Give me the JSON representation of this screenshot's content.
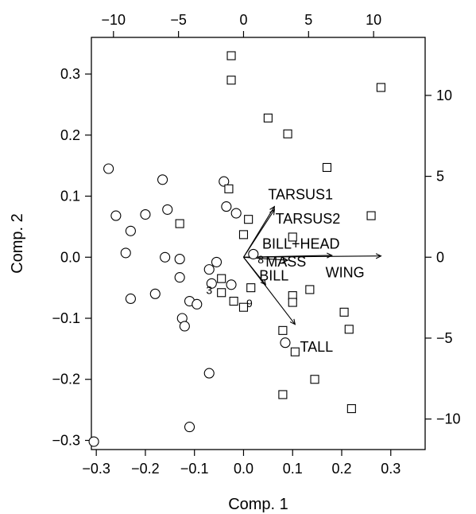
{
  "chart_data": {
    "type": "scatter",
    "xlabel": "Comp. 1",
    "ylabel": "Comp. 2",
    "xlim": [
      -0.31,
      0.37
    ],
    "ylim": [
      -0.315,
      0.36
    ],
    "xticks": [
      -0.3,
      -0.2,
      -0.1,
      0.0,
      0.1,
      0.2,
      0.3
    ],
    "xtick_labels": [
      "−0.3",
      "−0.2",
      "−0.1",
      "0.0",
      "0.1",
      "0.2",
      "0.3"
    ],
    "yticks": [
      -0.3,
      -0.2,
      -0.1,
      0.0,
      0.1,
      0.2,
      0.3
    ],
    "ytick_labels": [
      "−0.3",
      "−0.2",
      "−0.1",
      "0.0",
      "0.1",
      "0.2",
      "0.3"
    ],
    "top_axis": {
      "ticks": [
        -10,
        -5,
        0,
        5,
        10
      ],
      "tick_labels": [
        "−10",
        "−5",
        "0",
        "5",
        "10"
      ],
      "scale": 0.0265
    },
    "right_axis": {
      "ticks": [
        10,
        5,
        0,
        -5,
        -10
      ],
      "tick_labels": [
        "10",
        "5",
        "0",
        "−5",
        "−10"
      ],
      "scale": 0.0265
    },
    "grid": false,
    "series": [
      {
        "marker": "circle",
        "points": [
          [
            -0.275,
            0.145
          ],
          [
            -0.26,
            0.068
          ],
          [
            -0.23,
            0.043
          ],
          [
            -0.2,
            0.07
          ],
          [
            -0.165,
            0.127
          ],
          [
            -0.155,
            0.078
          ],
          [
            -0.24,
            0.007
          ],
          [
            -0.16,
            0.0
          ],
          [
            -0.13,
            -0.003
          ],
          [
            -0.13,
            -0.033
          ],
          [
            -0.23,
            -0.068
          ],
          [
            -0.18,
            -0.06
          ],
          [
            -0.125,
            -0.1
          ],
          [
            -0.12,
            -0.113
          ],
          [
            -0.11,
            -0.072
          ],
          [
            -0.095,
            -0.077
          ],
          [
            -0.07,
            -0.02
          ],
          [
            -0.065,
            -0.043
          ],
          [
            -0.055,
            -0.008
          ],
          [
            -0.04,
            0.124
          ],
          [
            -0.035,
            0.083
          ],
          [
            -0.025,
            -0.045
          ],
          [
            -0.015,
            0.072
          ],
          [
            -0.07,
            -0.19
          ],
          [
            -0.11,
            -0.278
          ],
          [
            -0.305,
            -0.302
          ],
          [
            0.02,
            0.005
          ],
          [
            0.085,
            -0.14
          ]
        ]
      },
      {
        "marker": "square",
        "points": [
          [
            -0.025,
            0.33
          ],
          [
            -0.025,
            0.29
          ],
          [
            0.05,
            0.228
          ],
          [
            0.09,
            0.202
          ],
          [
            0.28,
            0.278
          ],
          [
            0.17,
            0.147
          ],
          [
            -0.03,
            0.112
          ],
          [
            -0.13,
            0.055
          ],
          [
            0.01,
            0.062
          ],
          [
            0.0,
            0.037
          ],
          [
            0.1,
            0.033
          ],
          [
            0.26,
            0.068
          ],
          [
            -0.045,
            -0.035
          ],
          [
            -0.045,
            -0.058
          ],
          [
            -0.02,
            -0.072
          ],
          [
            0.0,
            -0.082
          ],
          [
            0.015,
            -0.05
          ],
          [
            0.1,
            -0.063
          ],
          [
            0.1,
            -0.074
          ],
          [
            0.135,
            -0.053
          ],
          [
            0.08,
            -0.12
          ],
          [
            0.105,
            -0.155
          ],
          [
            0.205,
            -0.09
          ],
          [
            0.215,
            -0.118
          ],
          [
            0.145,
            -0.2
          ],
          [
            0.08,
            -0.225
          ],
          [
            0.22,
            -0.248
          ]
        ]
      }
    ],
    "point_labels": [
      {
        "text": "3",
        "x": -0.07,
        "y": -0.06
      },
      {
        "text": "9",
        "x": 0.012,
        "y": -0.082
      },
      {
        "text": "8",
        "x": 0.035,
        "y": -0.01
      }
    ],
    "vectors": [
      {
        "name": "TARSUS1",
        "x": 0.063,
        "y": 0.083,
        "label_x": 0.05,
        "label_y": 0.095
      },
      {
        "name": "TARSUS2",
        "x": 0.063,
        "y": 0.078,
        "label_x": 0.065,
        "label_y": 0.055
      },
      {
        "name": "BILL+HEAD",
        "x": 0.18,
        "y": 0.003,
        "label_x": 0.038,
        "label_y": 0.014
      },
      {
        "name": "WING",
        "x": 0.28,
        "y": 0.002,
        "label_x": 0.167,
        "label_y": -0.033
      },
      {
        "name": "MASS",
        "x": 0.09,
        "y": -0.005,
        "label_x": 0.045,
        "label_y": -0.015
      },
      {
        "name": "BILL",
        "x": 0.045,
        "y": -0.045,
        "label_x": 0.032,
        "label_y": -0.038
      },
      {
        "name": "TALL",
        "x": 0.105,
        "y": -0.11,
        "label_x": 0.115,
        "label_y": -0.155
      }
    ]
  }
}
